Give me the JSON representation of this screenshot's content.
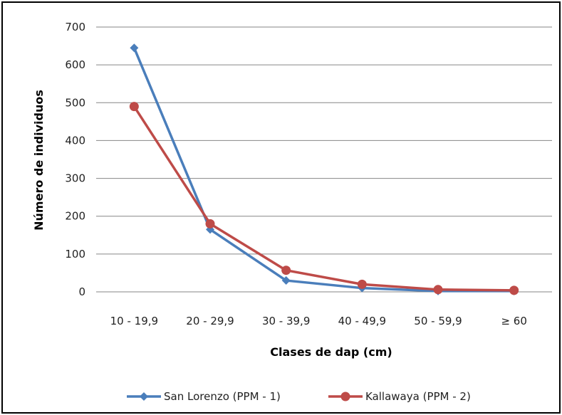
{
  "chart_data": {
    "type": "line",
    "title": "",
    "xlabel": "Clases de dap (cm)",
    "ylabel": "Número de individuos",
    "categories": [
      "10 - 19,9",
      "20 - 29,9",
      "30 - 39,9",
      "40 - 49,9",
      "50 - 59,9",
      "≥ 60"
    ],
    "ylim": [
      0,
      700
    ],
    "yticks": [
      0,
      100,
      200,
      300,
      400,
      500,
      600,
      700
    ],
    "grid": true,
    "legend": "bottom",
    "series": [
      {
        "name": "San Lorenzo (PPM - 1)",
        "color": "#4a7ebb",
        "marker": "diamond",
        "values": [
          645,
          165,
          30,
          10,
          2,
          2
        ]
      },
      {
        "name": "Kallawaya (PPM - 2)",
        "color": "#be4b48",
        "marker": "circle",
        "values": [
          490,
          180,
          57,
          20,
          6,
          4
        ]
      }
    ]
  }
}
